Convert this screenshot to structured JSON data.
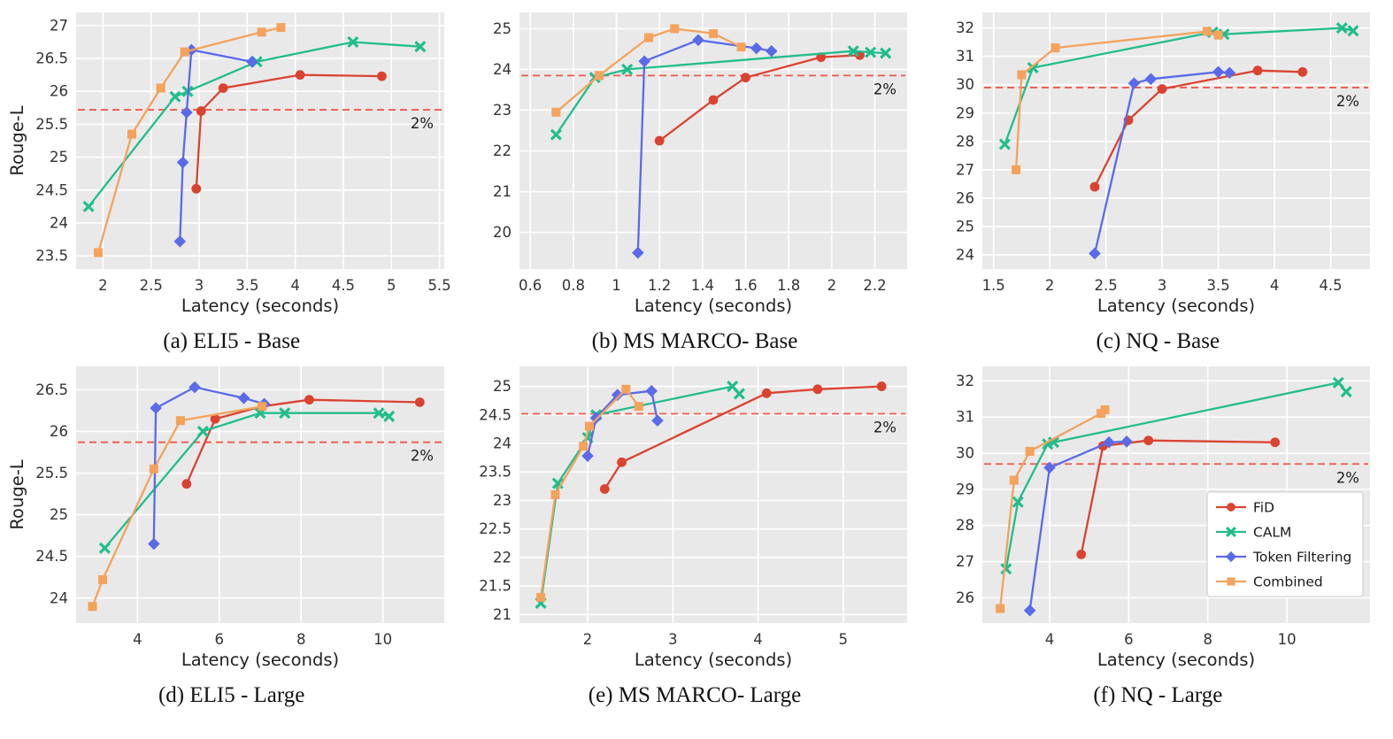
{
  "style": {
    "plot_background": "#e9e9e9",
    "grid_color": "#ffffff",
    "dashed_line_color": "#f0584a",
    "tick_label_color": "#333333",
    "axis_label_color": "#222222",
    "legend_text_color": "#1a1a1a"
  },
  "chart_data": [
    {
      "id": "a",
      "type": "line",
      "title": "(a) ELI5 - Base",
      "xlabel": "Latency (seconds)",
      "ylabel": "Rouge-L",
      "xlim": [
        1.72,
        5.55
      ],
      "ylim": [
        23.3,
        27.2
      ],
      "xticks": [
        2,
        2.5,
        3,
        3.5,
        4,
        4.5,
        5,
        5.5
      ],
      "yticks": [
        23.5,
        24,
        24.5,
        25,
        25.5,
        26,
        26.5,
        27
      ],
      "grid": true,
      "threshold": {
        "y": 25.72,
        "label": "2%"
      },
      "series": [
        {
          "name": "FiD",
          "color": "#da4330",
          "marker": "circle",
          "points": [
            [
              2.97,
              24.52
            ],
            [
              3.02,
              25.7
            ],
            [
              3.25,
              26.05
            ],
            [
              4.05,
              26.25
            ],
            [
              4.9,
              26.23
            ]
          ]
        },
        {
          "name": "CALM",
          "color": "#22bd8c",
          "marker": "x",
          "points": [
            [
              1.85,
              24.25
            ],
            [
              2.75,
              25.92
            ],
            [
              2.88,
              26.0
            ],
            [
              3.6,
              26.45
            ],
            [
              4.6,
              26.75
            ],
            [
              5.3,
              26.68
            ]
          ]
        },
        {
          "name": "Token Filtering",
          "color": "#5b6ae8",
          "marker": "diamond",
          "points": [
            [
              2.8,
              23.72
            ],
            [
              2.83,
              24.92
            ],
            [
              2.87,
              25.68
            ],
            [
              2.92,
              26.63
            ],
            [
              3.55,
              26.45
            ]
          ]
        },
        {
          "name": "Combined",
          "color": "#f4a25c",
          "marker": "square",
          "points": [
            [
              1.95,
              23.55
            ],
            [
              2.3,
              25.35
            ],
            [
              2.6,
              26.05
            ],
            [
              2.85,
              26.6
            ],
            [
              3.65,
              26.9
            ],
            [
              3.85,
              26.97
            ]
          ]
        }
      ]
    },
    {
      "id": "b",
      "type": "line",
      "title": "(b) MS MARCO- Base",
      "xlabel": "Latency (seconds)",
      "ylabel": "",
      "xlim": [
        0.55,
        2.35
      ],
      "ylim": [
        19.1,
        25.4
      ],
      "xticks": [
        0.6,
        0.8,
        1,
        1.2,
        1.4,
        1.6,
        1.8,
        2,
        2.2
      ],
      "yticks": [
        20,
        21,
        22,
        23,
        24,
        25
      ],
      "grid": true,
      "threshold": {
        "y": 23.85,
        "label": "2%"
      },
      "series": [
        {
          "name": "FiD",
          "color": "#da4330",
          "marker": "circle",
          "points": [
            [
              1.2,
              22.25
            ],
            [
              1.45,
              23.25
            ],
            [
              1.6,
              23.8
            ],
            [
              1.95,
              24.3
            ],
            [
              2.13,
              24.35
            ]
          ]
        },
        {
          "name": "CALM",
          "color": "#22bd8c",
          "marker": "x",
          "points": [
            [
              0.72,
              22.4
            ],
            [
              0.9,
              23.8
            ],
            [
              1.05,
              24.0
            ],
            [
              2.1,
              24.45
            ],
            [
              2.18,
              24.42
            ],
            [
              2.25,
              24.4
            ]
          ]
        },
        {
          "name": "Token Filtering",
          "color": "#5b6ae8",
          "marker": "diamond",
          "points": [
            [
              1.1,
              19.5
            ],
            [
              1.13,
              24.2
            ],
            [
              1.38,
              24.72
            ],
            [
              1.65,
              24.52
            ],
            [
              1.72,
              24.45
            ]
          ]
        },
        {
          "name": "Combined",
          "color": "#f4a25c",
          "marker": "square",
          "points": [
            [
              0.72,
              22.95
            ],
            [
              0.92,
              23.85
            ],
            [
              1.15,
              24.78
            ],
            [
              1.27,
              25.0
            ],
            [
              1.45,
              24.88
            ],
            [
              1.58,
              24.55
            ]
          ]
        }
      ]
    },
    {
      "id": "c",
      "type": "line",
      "title": "(c) NQ - Base",
      "xlabel": "Latency (seconds)",
      "ylabel": "",
      "xlim": [
        1.4,
        4.85
      ],
      "ylim": [
        23.5,
        32.55
      ],
      "xticks": [
        1.5,
        2,
        2.5,
        3,
        3.5,
        4,
        4.5
      ],
      "yticks": [
        24,
        25,
        26,
        27,
        28,
        29,
        30,
        31,
        32
      ],
      "grid": true,
      "threshold": {
        "y": 29.9,
        "label": "2%"
      },
      "series": [
        {
          "name": "FiD",
          "color": "#da4330",
          "marker": "circle",
          "points": [
            [
              2.4,
              26.4
            ],
            [
              2.7,
              28.75
            ],
            [
              3.0,
              29.85
            ],
            [
              3.85,
              30.5
            ],
            [
              4.25,
              30.45
            ]
          ]
        },
        {
          "name": "CALM",
          "color": "#22bd8c",
          "marker": "x",
          "points": [
            [
              1.6,
              27.9
            ],
            [
              1.85,
              30.6
            ],
            [
              3.45,
              31.85
            ],
            [
              3.55,
              31.78
            ],
            [
              4.6,
              32.0
            ],
            [
              4.7,
              31.9
            ]
          ]
        },
        {
          "name": "Token Filtering",
          "color": "#5b6ae8",
          "marker": "diamond",
          "points": [
            [
              2.4,
              24.05
            ],
            [
              2.75,
              30.05
            ],
            [
              2.9,
              30.2
            ],
            [
              3.5,
              30.45
            ],
            [
              3.6,
              30.42
            ]
          ]
        },
        {
          "name": "Combined",
          "color": "#f4a25c",
          "marker": "square",
          "points": [
            [
              1.7,
              27.0
            ],
            [
              1.75,
              30.35
            ],
            [
              2.05,
              31.3
            ],
            [
              3.4,
              31.88
            ],
            [
              3.5,
              31.75
            ]
          ]
        }
      ]
    },
    {
      "id": "d",
      "type": "line",
      "title": "(d) ELI5 - Large",
      "xlabel": "Latency (seconds)",
      "ylabel": "Rouge-L",
      "xlim": [
        2.5,
        11.5
      ],
      "ylim": [
        23.7,
        26.78
      ],
      "xticks": [
        4,
        6,
        8,
        10
      ],
      "yticks": [
        24,
        24.5,
        25,
        25.5,
        26,
        26.5
      ],
      "grid": true,
      "threshold": {
        "y": 25.87,
        "label": "2%"
      },
      "series": [
        {
          "name": "FiD",
          "color": "#da4330",
          "marker": "circle",
          "points": [
            [
              5.2,
              25.37
            ],
            [
              5.9,
              26.15
            ],
            [
              7.05,
              26.3
            ],
            [
              8.2,
              26.38
            ],
            [
              10.9,
              26.35
            ]
          ]
        },
        {
          "name": "CALM",
          "color": "#22bd8c",
          "marker": "x",
          "points": [
            [
              3.2,
              24.6
            ],
            [
              5.6,
              26.0
            ],
            [
              7.0,
              26.22
            ],
            [
              7.6,
              26.22
            ],
            [
              9.9,
              26.22
            ],
            [
              10.15,
              26.18
            ]
          ]
        },
        {
          "name": "Token Filtering",
          "color": "#5b6ae8",
          "marker": "diamond",
          "points": [
            [
              4.4,
              24.65
            ],
            [
              4.45,
              26.28
            ],
            [
              5.4,
              26.53
            ],
            [
              6.6,
              26.4
            ],
            [
              7.1,
              26.33
            ]
          ]
        },
        {
          "name": "Combined",
          "color": "#f4a25c",
          "marker": "square",
          "points": [
            [
              2.9,
              23.9
            ],
            [
              3.15,
              24.22
            ],
            [
              4.4,
              25.55
            ],
            [
              5.05,
              26.13
            ],
            [
              7.05,
              26.3
            ]
          ]
        }
      ]
    },
    {
      "id": "e",
      "type": "line",
      "title": "(e) MS MARCO- Large",
      "xlabel": "Latency (seconds)",
      "ylabel": "",
      "xlim": [
        1.2,
        5.75
      ],
      "ylim": [
        20.85,
        25.35
      ],
      "xticks": [
        2,
        3,
        4,
        5
      ],
      "yticks": [
        21,
        21.5,
        22,
        22.5,
        23,
        23.5,
        24,
        24.5,
        25
      ],
      "grid": true,
      "threshold": {
        "y": 24.52,
        "label": "2%"
      },
      "series": [
        {
          "name": "FiD",
          "color": "#da4330",
          "marker": "circle",
          "points": [
            [
              2.2,
              23.2
            ],
            [
              2.4,
              23.67
            ],
            [
              4.1,
              24.88
            ],
            [
              4.7,
              24.95
            ],
            [
              5.45,
              25.0
            ]
          ]
        },
        {
          "name": "CALM",
          "color": "#22bd8c",
          "marker": "x",
          "points": [
            [
              1.45,
              21.2
            ],
            [
              1.65,
              23.3
            ],
            [
              2.0,
              24.1
            ],
            [
              2.1,
              24.5
            ],
            [
              3.7,
              25.0
            ],
            [
              3.78,
              24.87
            ]
          ]
        },
        {
          "name": "Token Filtering",
          "color": "#5b6ae8",
          "marker": "diamond",
          "points": [
            [
              2.0,
              23.78
            ],
            [
              2.1,
              24.45
            ],
            [
              2.35,
              24.85
            ],
            [
              2.75,
              24.92
            ],
            [
              2.82,
              24.4
            ]
          ]
        },
        {
          "name": "Combined",
          "color": "#f4a25c",
          "marker": "square",
          "points": [
            [
              1.45,
              21.3
            ],
            [
              1.62,
              23.1
            ],
            [
              1.95,
              23.95
            ],
            [
              2.02,
              24.3
            ],
            [
              2.45,
              24.95
            ],
            [
              2.6,
              24.65
            ]
          ]
        }
      ]
    },
    {
      "id": "f",
      "type": "line",
      "title": "(f) NQ - Large",
      "xlabel": "Latency (seconds)",
      "ylabel": "",
      "xlim": [
        2.3,
        12.1
      ],
      "ylim": [
        25.3,
        32.4
      ],
      "xticks": [
        4,
        6,
        8,
        10
      ],
      "yticks": [
        26,
        27,
        28,
        29,
        30,
        31,
        32
      ],
      "grid": true,
      "legend": true,
      "legend_position": "lower right",
      "threshold": {
        "y": 29.7,
        "label": "2%"
      },
      "series": [
        {
          "name": "FiD",
          "color": "#da4330",
          "marker": "circle",
          "points": [
            [
              4.8,
              27.2
            ],
            [
              5.35,
              30.2
            ],
            [
              6.5,
              30.35
            ],
            [
              9.7,
              30.3
            ]
          ]
        },
        {
          "name": "CALM",
          "color": "#22bd8c",
          "marker": "x",
          "points": [
            [
              2.9,
              26.8
            ],
            [
              3.2,
              28.65
            ],
            [
              3.95,
              30.25
            ],
            [
              4.1,
              30.3
            ],
            [
              11.3,
              31.95
            ],
            [
              11.5,
              31.7
            ]
          ]
        },
        {
          "name": "Token Filtering",
          "color": "#5b6ae8",
          "marker": "diamond",
          "points": [
            [
              3.5,
              25.65
            ],
            [
              4.0,
              29.6
            ],
            [
              5.5,
              30.3
            ],
            [
              5.95,
              30.32
            ]
          ]
        },
        {
          "name": "Combined",
          "color": "#f4a25c",
          "marker": "square",
          "points": [
            [
              2.75,
              25.7
            ],
            [
              3.1,
              29.25
            ],
            [
              3.5,
              30.05
            ],
            [
              5.3,
              31.1
            ],
            [
              5.4,
              31.2
            ]
          ]
        }
      ]
    }
  ]
}
